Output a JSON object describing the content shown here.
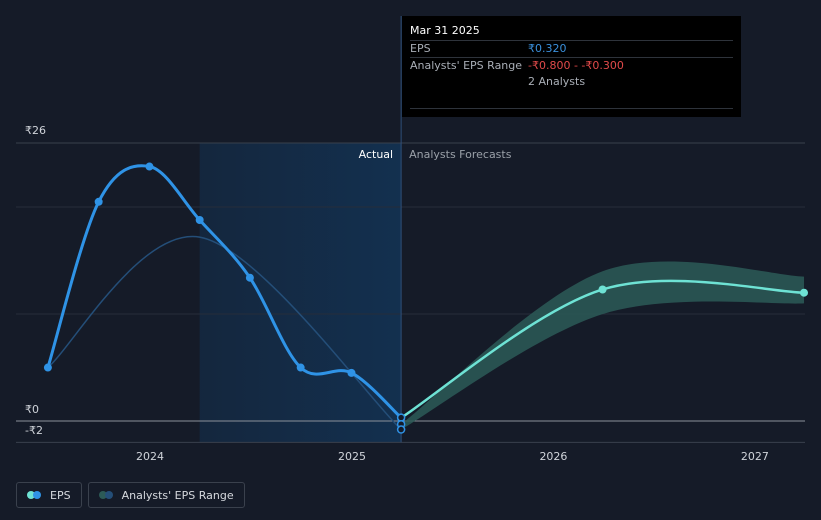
{
  "tooltip": {
    "date": "Mar 31 2025",
    "eps_label": "EPS",
    "eps_value": "₹0.320",
    "range_label": "Analysts' EPS Range",
    "range_value": "-₹0.800 - -₹0.300",
    "analysts": "2 Analysts"
  },
  "sections": {
    "actual": "Actual",
    "forecast": "Analysts Forecasts"
  },
  "legend": {
    "eps": "EPS",
    "range": "Analysts' EPS Range"
  },
  "colors": {
    "background": "#151b28",
    "eps_actual": "#2f93e6",
    "eps_forecast": "#6ee2d4",
    "range_band": "#2c5a57",
    "past_trend": "#244e78",
    "actual_shade": "#13304f"
  },
  "chart_data": {
    "type": "line",
    "title": "",
    "xlabel": "",
    "ylabel": "",
    "x_ticks": [
      "2024",
      "2025",
      "2026",
      "2027"
    ],
    "y_ticks": [
      "₹26",
      "₹0",
      "-₹2"
    ],
    "ylim": [
      -2,
      26
    ],
    "grid": true,
    "series": [
      {
        "name": "EPS",
        "kind": "actual",
        "x": [
          "2023-06-30",
          "2023-09-30",
          "2023-12-31",
          "2024-03-31",
          "2024-06-30",
          "2024-09-30",
          "2024-12-31",
          "2025-03-31"
        ],
        "values": [
          5.0,
          20.5,
          23.8,
          18.8,
          13.4,
          5.0,
          4.5,
          0.3
        ]
      },
      {
        "name": "EPS",
        "kind": "forecast",
        "x": [
          "2025-03-31",
          "2026-03-31",
          "2027-03-31"
        ],
        "values": [
          0.3,
          12.3,
          12.0
        ]
      },
      {
        "name": "Analysts' EPS Range",
        "kind": "range",
        "x": [
          "2025-03-31",
          "2026-03-31",
          "2027-03-31"
        ],
        "low": [
          -0.8,
          10.0,
          11.0
        ],
        "high": [
          -0.3,
          14.0,
          13.5
        ]
      },
      {
        "kind": "past_trend",
        "x": [
          "2023-06-30",
          "2024-03-31",
          "2025-03-31"
        ],
        "values": [
          5.0,
          17.2,
          -0.8
        ]
      }
    ],
    "highlight_date": "2025-03-31",
    "highlight_points": [
      0.32,
      -0.3,
      -0.8
    ]
  }
}
